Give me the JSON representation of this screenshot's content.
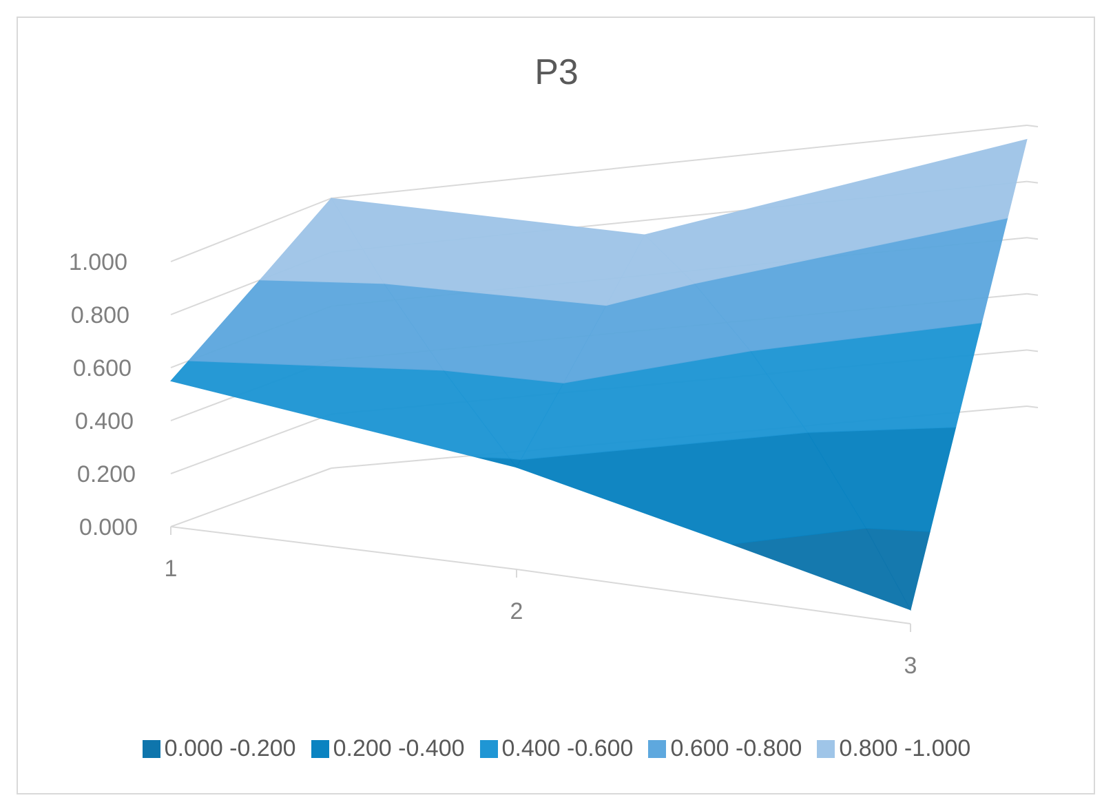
{
  "chart_data": {
    "type": "surface",
    "title": "P3",
    "x_categories": [
      "1",
      "2",
      "3"
    ],
    "series_count": 2,
    "values": [
      [
        0.55,
        1.0
      ],
      [
        0.38,
        0.98
      ],
      [
        0.05,
        0.95
      ]
    ],
    "zlim": [
      0,
      1
    ],
    "z_ticks": [
      "0.000",
      "0.200",
      "0.400",
      "0.600",
      "0.800",
      "1.000"
    ],
    "bands": [
      {
        "label": "0.000 -0.200",
        "color": "#0e75ac"
      },
      {
        "label": "0.200 -0.400",
        "color": "#0a83c1"
      },
      {
        "label": "0.400 -0.600",
        "color": "#1f96d4"
      },
      {
        "label": "0.600 -0.800",
        "color": "#5ea8de"
      },
      {
        "label": "0.800 -1.000",
        "color": "#9fc5e8"
      }
    ],
    "grid": true,
    "legend": "bottom"
  }
}
